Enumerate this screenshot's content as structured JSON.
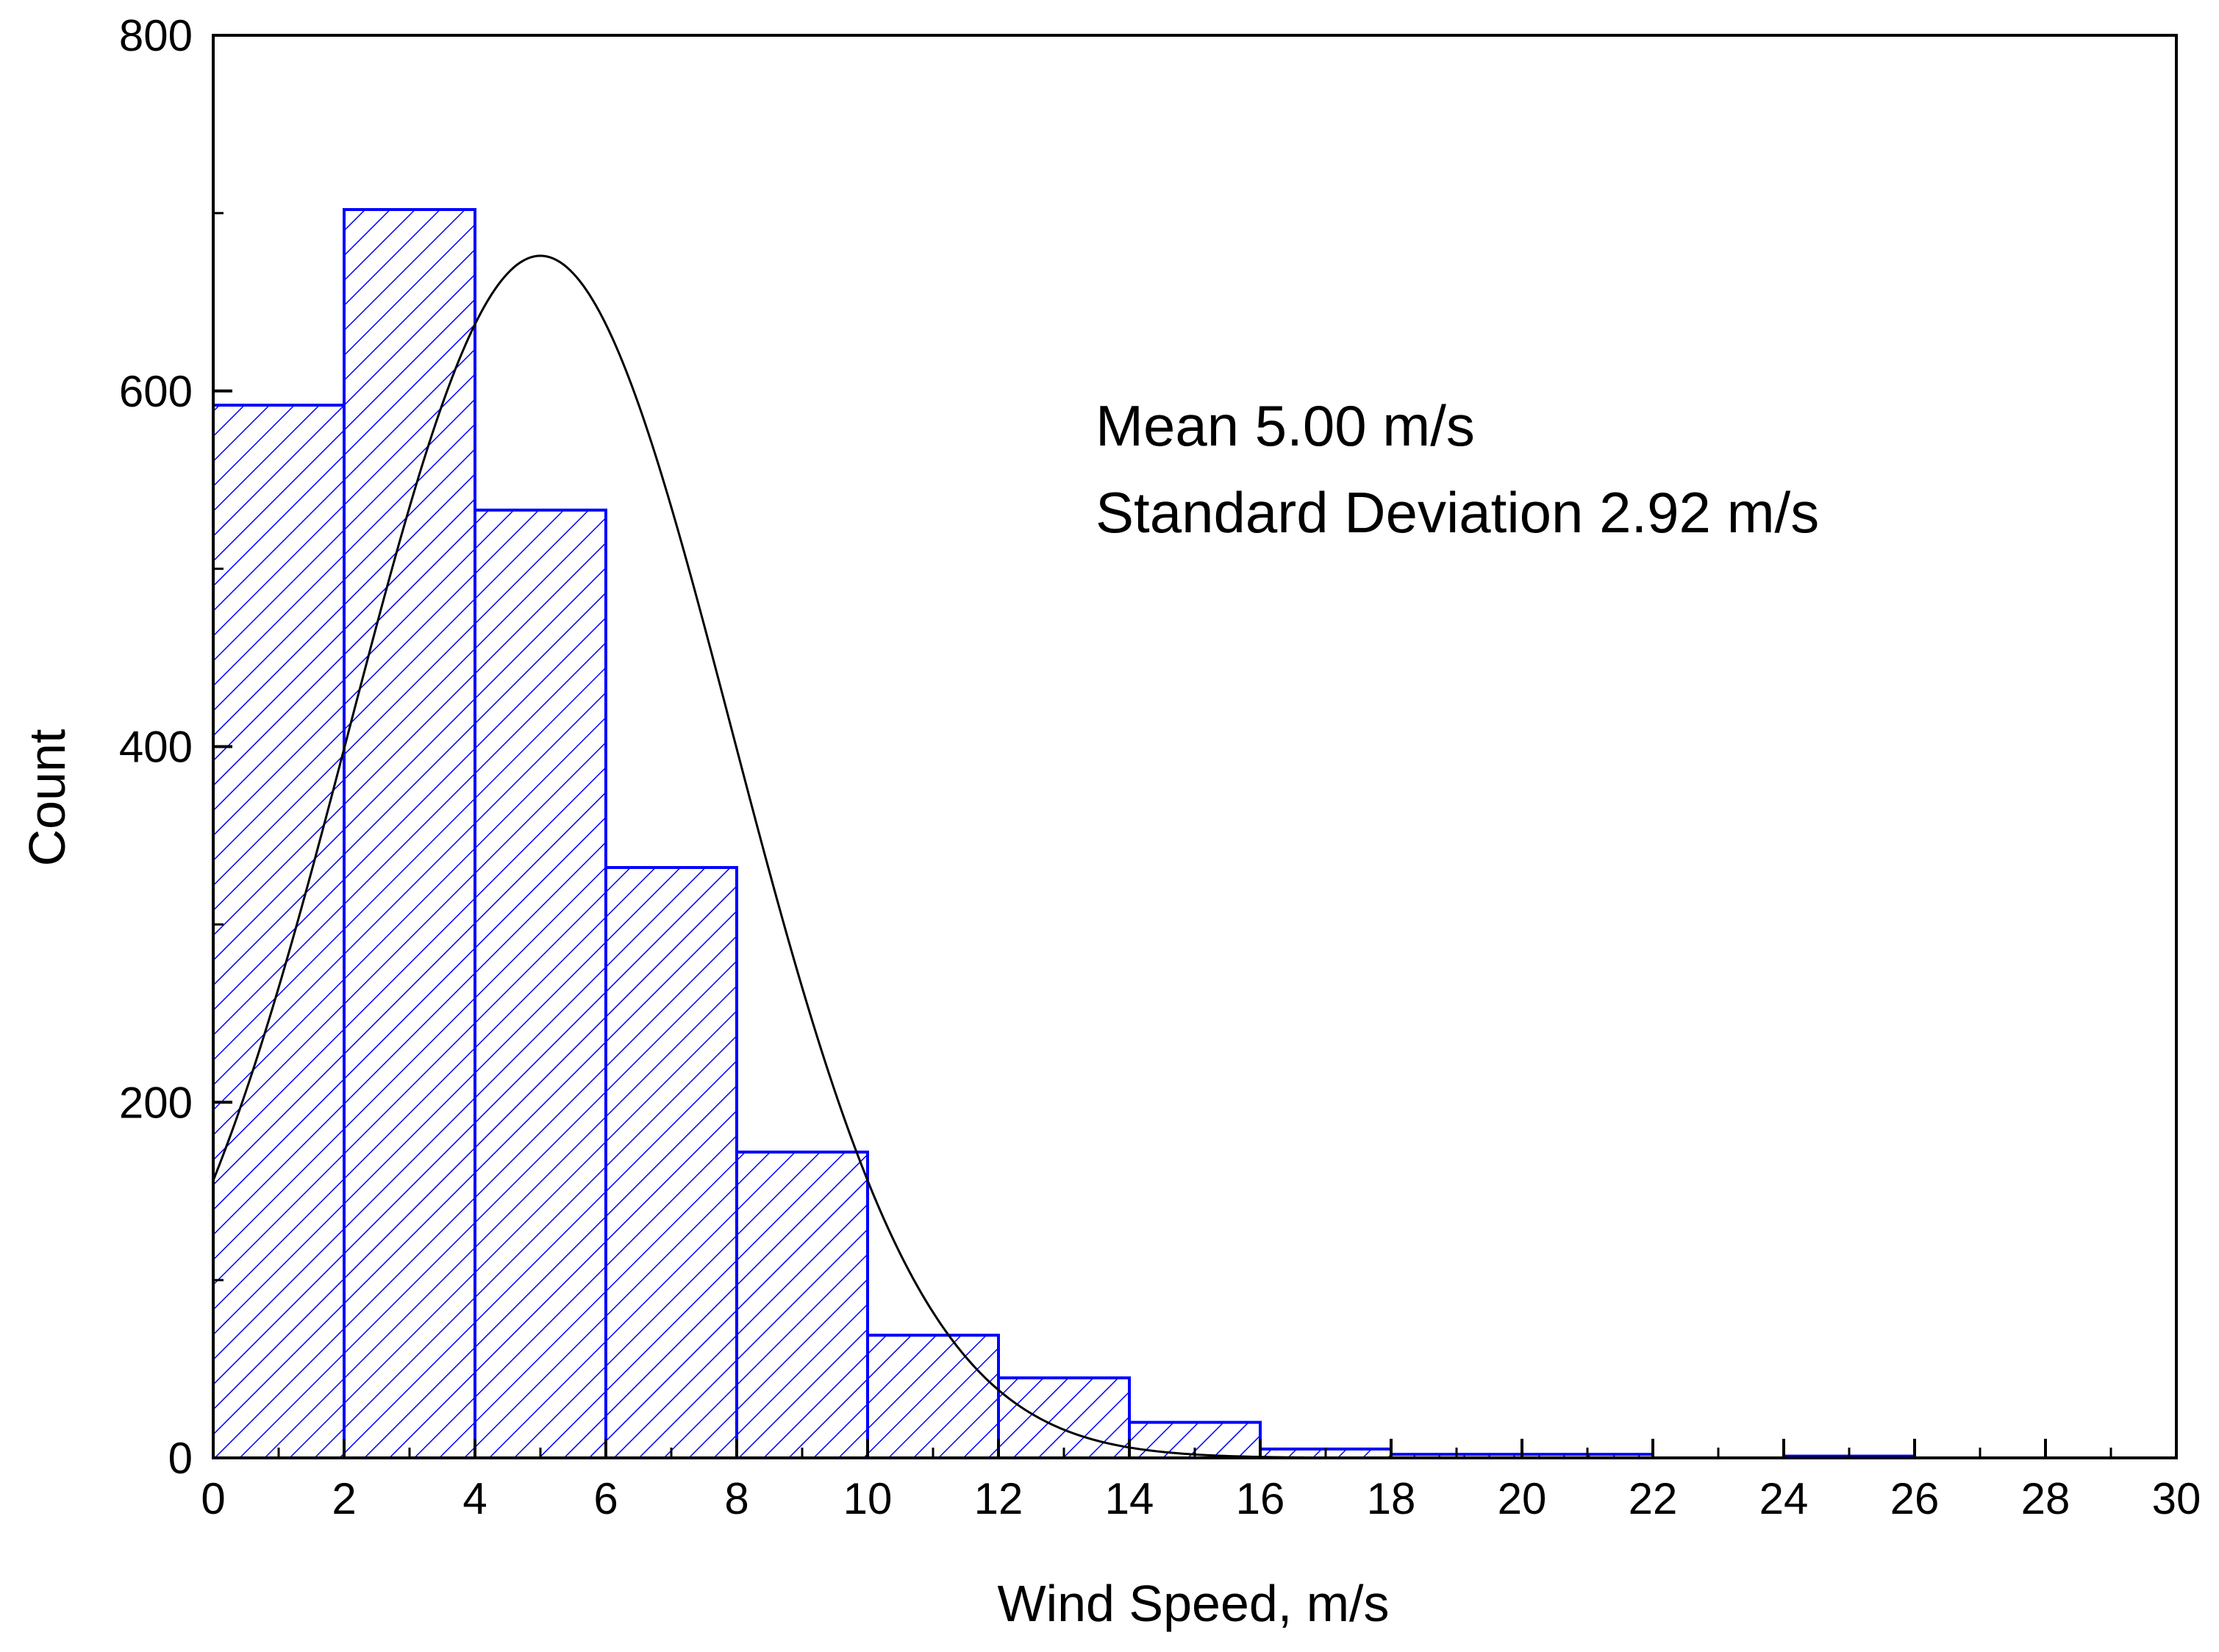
{
  "chart_data": {
    "type": "bar",
    "title": "",
    "xlabel": "Wind Speed, m/s",
    "ylabel": "Count",
    "xlim": [
      0,
      30
    ],
    "ylim": [
      0,
      800
    ],
    "x_ticks": [
      0,
      2,
      4,
      6,
      8,
      10,
      12,
      14,
      16,
      18,
      20,
      22,
      24,
      26,
      28,
      30
    ],
    "y_ticks": [
      0,
      200,
      400,
      600,
      800
    ],
    "bin_width": 2,
    "bins": [
      {
        "start": 0,
        "end": 2,
        "count": 592
      },
      {
        "start": 2,
        "end": 4,
        "count": 702
      },
      {
        "start": 4,
        "end": 6,
        "count": 533
      },
      {
        "start": 6,
        "end": 8,
        "count": 332
      },
      {
        "start": 8,
        "end": 10,
        "count": 172
      },
      {
        "start": 10,
        "end": 12,
        "count": 69
      },
      {
        "start": 12,
        "end": 14,
        "count": 45
      },
      {
        "start": 14,
        "end": 16,
        "count": 20
      },
      {
        "start": 16,
        "end": 18,
        "count": 5
      },
      {
        "start": 18,
        "end": 20,
        "count": 2
      },
      {
        "start": 20,
        "end": 22,
        "count": 2
      },
      {
        "start": 24,
        "end": 26,
        "count": 1
      }
    ],
    "fit_curve": {
      "type": "normal",
      "mean": 5.0,
      "std": 2.92,
      "peak_count": 676,
      "color": "#000000"
    },
    "bar_edge_color": "#0000ff",
    "bar_hatch_color": "#0000ff",
    "annotations": [
      "Mean 5.00 m/s",
      "Standard Deviation 2.92 m/s"
    ],
    "grid": false,
    "legend": "none"
  }
}
